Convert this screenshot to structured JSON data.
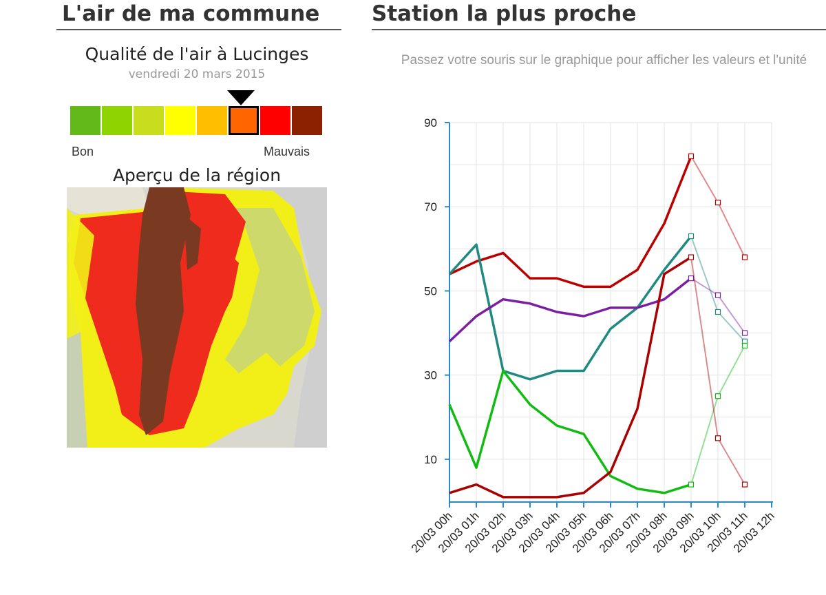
{
  "left_panel": {
    "heading": "L'air de ma commune",
    "quality_title": "Qualité de l'air à Lucinges",
    "quality_date": "vendredi 20 mars 2015",
    "scale_colors": [
      "#63b81a",
      "#8fd400",
      "#c9dd1f",
      "#ffff00",
      "#ffbf00",
      "#ff6600",
      "#ff0000",
      "#8b2100"
    ],
    "selected_level": 6,
    "label_good": "Bon",
    "label_bad": "Mauvais",
    "region_title": "Aperçu de la région"
  },
  "right_panel": {
    "heading": "Station la plus proche",
    "hint": "Passez votre souris sur le graphique pour afficher les valeurs et l'unité"
  },
  "chart_data": {
    "type": "line",
    "categories": [
      "20/03 00h",
      "20/03 01h",
      "20/03 02h",
      "20/03 03h",
      "20/03 04h",
      "20/03 05h",
      "20/03 06h",
      "20/03 07h",
      "20/03 08h",
      "20/03 09h",
      "20/03 10h",
      "20/03 11h",
      "20/03 12h"
    ],
    "y_ticks": [
      10,
      30,
      50,
      70,
      90
    ],
    "ylim": [
      0,
      90
    ],
    "grid": true,
    "series": [
      {
        "color": "#bb0000",
        "measured": [
          54,
          57,
          59,
          53,
          53,
          51,
          51,
          55,
          66,
          82
        ],
        "forecast": [
          82,
          71,
          58
        ]
      },
      {
        "color": "#1f8a80",
        "measured": [
          54,
          61,
          31,
          29,
          31,
          31,
          41,
          46,
          55,
          63
        ],
        "forecast": [
          63,
          45,
          38
        ]
      },
      {
        "color": "#7b1fa2",
        "measured": [
          38,
          44,
          48,
          47,
          45,
          44,
          46,
          46,
          48,
          53
        ],
        "forecast": [
          53,
          49,
          40
        ]
      },
      {
        "color": "#11bb11",
        "measured": [
          23,
          8,
          31,
          23,
          18,
          16,
          6,
          3,
          2,
          4
        ],
        "forecast": [
          4,
          25,
          37
        ]
      },
      {
        "color": "#aa0000",
        "measured": [
          2,
          4,
          1,
          1,
          1,
          2,
          7,
          22,
          54,
          58
        ],
        "forecast": [
          58,
          15,
          4
        ]
      }
    ]
  }
}
